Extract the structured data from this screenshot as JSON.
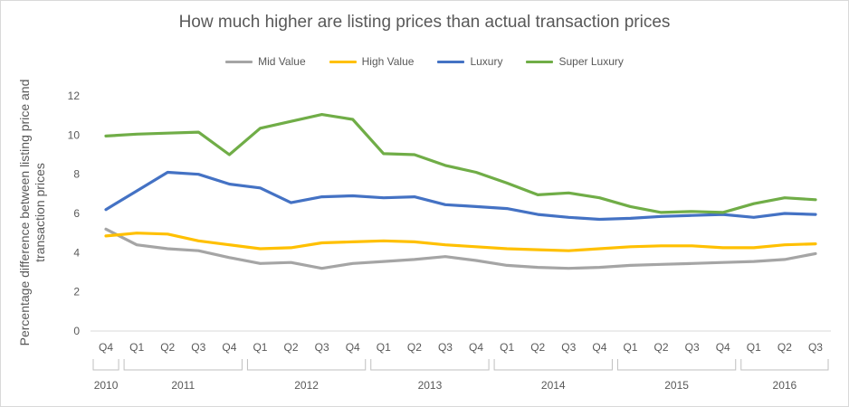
{
  "chart_data": {
    "type": "line",
    "title": "How much higher are listing prices than actual transaction prices",
    "ylabel": "Percentage difference between listing price and transaction prices",
    "xlabel": "",
    "ylim": [
      0,
      12
    ],
    "yticks": [
      0,
      2,
      4,
      6,
      8,
      10,
      12
    ],
    "legend_position": "top",
    "grid": false,
    "categories": [
      "Q4",
      "Q1",
      "Q2",
      "Q3",
      "Q4",
      "Q1",
      "Q2",
      "Q3",
      "Q4",
      "Q1",
      "Q2",
      "Q3",
      "Q4",
      "Q1",
      "Q2",
      "Q3",
      "Q4",
      "Q1",
      "Q2",
      "Q3",
      "Q4",
      "Q1",
      "Q2",
      "Q3"
    ],
    "year_groups": [
      {
        "label": "2010",
        "count": 1
      },
      {
        "label": "2011",
        "count": 4
      },
      {
        "label": "2012",
        "count": 4
      },
      {
        "label": "2013",
        "count": 4
      },
      {
        "label": "2014",
        "count": 4
      },
      {
        "label": "2015",
        "count": 4
      },
      {
        "label": "2016",
        "count": 3
      }
    ],
    "series": [
      {
        "name": "Mid Value",
        "color": "#a5a5a5",
        "values": [
          5.2,
          4.4,
          4.2,
          4.1,
          3.75,
          3.45,
          3.5,
          3.2,
          3.45,
          3.55,
          3.65,
          3.8,
          3.6,
          3.35,
          3.25,
          3.2,
          3.25,
          3.35,
          3.4,
          3.45,
          3.5,
          3.55,
          3.65,
          3.95
        ]
      },
      {
        "name": "High Value",
        "color": "#ffc000",
        "values": [
          4.85,
          5.0,
          4.95,
          4.6,
          4.4,
          4.2,
          4.25,
          4.5,
          4.55,
          4.6,
          4.55,
          4.4,
          4.3,
          4.2,
          4.15,
          4.1,
          4.2,
          4.3,
          4.35,
          4.35,
          4.25,
          4.25,
          4.4,
          4.45
        ]
      },
      {
        "name": "Luxury",
        "color": "#4472c4",
        "values": [
          6.2,
          7.15,
          8.1,
          8.0,
          7.5,
          7.3,
          6.55,
          6.85,
          6.9,
          6.8,
          6.85,
          6.45,
          6.35,
          6.25,
          5.95,
          5.8,
          5.7,
          5.75,
          5.85,
          5.9,
          5.95,
          5.8,
          6.0,
          5.95
        ]
      },
      {
        "name": "Super Luxury",
        "color": "#70ad47",
        "values": [
          9.95,
          10.05,
          10.1,
          10.15,
          9.0,
          10.35,
          10.7,
          11.05,
          10.8,
          9.05,
          9.0,
          8.45,
          8.1,
          7.55,
          6.95,
          7.05,
          6.8,
          6.35,
          6.05,
          6.1,
          6.05,
          6.5,
          6.8,
          6.7
        ]
      }
    ]
  }
}
